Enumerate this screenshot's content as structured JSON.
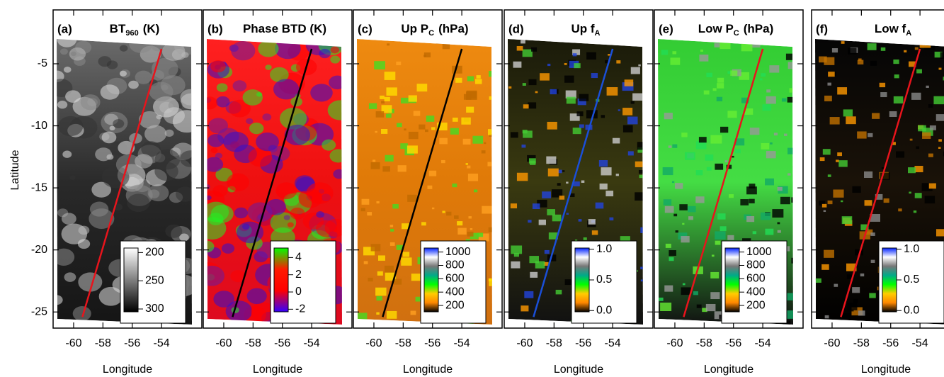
{
  "chart_data": [
    {
      "type": "image",
      "label": "(a)",
      "title": "BT",
      "title_sub": "960",
      "title_unit": "(K)",
      "xlabel": "Longitude",
      "ylabel": "Latitude",
      "xlim": [
        -61.4,
        -51.25
      ],
      "ylim": [
        -26.3,
        -0.66
      ],
      "xticks": [
        -60,
        -58,
        -56,
        -54
      ],
      "yticks": [
        -5,
        -10,
        -15,
        -20,
        -25
      ],
      "colorbar": {
        "ticks": [
          200,
          250,
          300
        ],
        "lim": [
          305,
          192
        ],
        "colors": [
          "#000000",
          "#ffffff"
        ]
      },
      "track": {
        "color": "#e8141c",
        "x": [
          -59.4,
          -54.0
        ],
        "y": [
          -25.4,
          -3.8
        ]
      }
    },
    {
      "type": "image",
      "label": "(b)",
      "title": "Phase BTD (K)",
      "xlabel": "Longitude",
      "xlim": [
        -61.4,
        -51.25
      ],
      "ylim": [
        -26.3,
        -0.66
      ],
      "xticks": [
        -60,
        -58,
        -56,
        -54
      ],
      "colorbar": {
        "ticks": [
          4,
          2,
          0,
          -2
        ],
        "lim": [
          -2.3,
          5.1
        ],
        "colors": [
          "#3300ff",
          "#ff0000",
          "#ff1a00",
          "#00ff00"
        ]
      },
      "track": {
        "color": "#000000",
        "x": [
          -59.4,
          -54.0
        ],
        "y": [
          -25.4,
          -3.8
        ]
      }
    },
    {
      "type": "image",
      "label": "(c)",
      "title": "Up P",
      "title_sub": "C",
      "title_unit": "(hPa)",
      "xlabel": "Longitude",
      "xlim": [
        -61.4,
        -51.25
      ],
      "ylim": [
        -26.3,
        -0.66
      ],
      "xticks": [
        -60,
        -58,
        -56,
        -54
      ],
      "colorbar": {
        "ticks": [
          1000,
          800,
          600,
          400,
          200
        ],
        "lim": [
          105,
          1060
        ],
        "colors": [
          "#000000",
          "#ff8800",
          "#ffcc00",
          "#00ff00",
          "#00aa88",
          "#777777",
          "#ffffff",
          "#0022ff"
        ]
      },
      "track": {
        "color": "#000000",
        "x": [
          -59.4,
          -54.0
        ],
        "y": [
          -25.4,
          -3.8
        ]
      }
    },
    {
      "type": "image",
      "label": "(d)",
      "title": "Up f",
      "title_sub": "A",
      "xlabel": "Longitude",
      "xlim": [
        -61.4,
        -51.25
      ],
      "ylim": [
        -26.3,
        -0.66
      ],
      "xticks": [
        -60,
        -58,
        -56,
        -54
      ],
      "colorbar": {
        "ticks": [
          {
            "value": 1,
            "label": "1.0"
          },
          0.5,
          {
            "value": 0,
            "label": "0.0"
          }
        ],
        "lim": [
          -0.02,
          1.02
        ],
        "colors": [
          "#000000",
          "#ff8800",
          "#ffcc00",
          "#00ff00",
          "#00aa88",
          "#777777",
          "#ffffff",
          "#0022ff"
        ]
      },
      "track": {
        "color": "#1a4fd8",
        "x": [
          -59.4,
          -54.0
        ],
        "y": [
          -25.4,
          -3.8
        ]
      }
    },
    {
      "type": "image",
      "label": "(e)",
      "title": "Low P",
      "title_sub": "C",
      "title_unit": "(hPa)",
      "xlabel": "Longitude",
      "xlim": [
        -61.4,
        -51.25
      ],
      "ylim": [
        -26.3,
        -0.66
      ],
      "xticks": [
        -60,
        -58,
        -56,
        -54
      ],
      "colorbar": {
        "ticks": [
          1000,
          800,
          600,
          400,
          200
        ],
        "lim": [
          105,
          1060
        ],
        "colors": [
          "#000000",
          "#ff8800",
          "#ffcc00",
          "#00ff00",
          "#00aa88",
          "#777777",
          "#ffffff",
          "#0022ff"
        ]
      },
      "track": {
        "color": "#e8141c",
        "x": [
          -59.4,
          -54.0
        ],
        "y": [
          -25.4,
          -3.8
        ]
      }
    },
    {
      "type": "image",
      "label": "(f)",
      "title": "Low f",
      "title_sub": "A",
      "xlabel": "Longitude",
      "xlim": [
        -61.4,
        -51.25
      ],
      "ylim": [
        -26.3,
        -0.66
      ],
      "xticks": [
        -60,
        -58,
        -56,
        -54
      ],
      "colorbar": {
        "ticks": [
          {
            "value": 1,
            "label": "1.0"
          },
          0.5,
          {
            "value": 0,
            "label": "0.0"
          }
        ],
        "lim": [
          -0.02,
          1.02
        ],
        "colors": [
          "#000000",
          "#ff8800",
          "#ffcc00",
          "#00ff00",
          "#00aa88",
          "#777777",
          "#ffffff",
          "#0022ff"
        ]
      },
      "track": {
        "color": "#e8141c",
        "x": [
          -59.4,
          -54.0
        ],
        "y": [
          -25.4,
          -3.8
        ]
      }
    }
  ]
}
